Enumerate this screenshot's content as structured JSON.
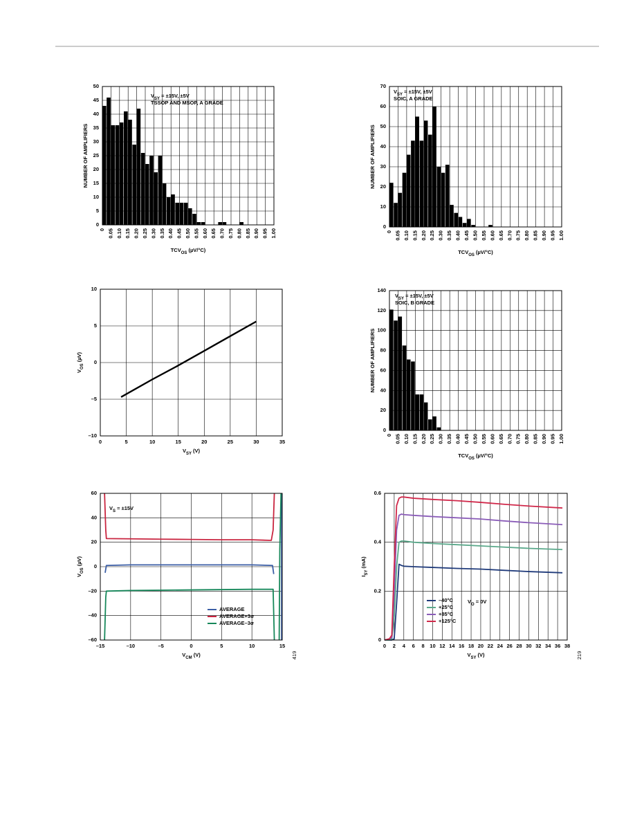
{
  "chart_data": [
    {
      "type": "histogram",
      "ylabel": "NUMBER OF AMPLIFIERS",
      "xlabel": [
        "TCV",
        "OS",
        " (µV/°C)"
      ],
      "annotations": [
        [
          "V",
          "SY",
          " = ±15V, ±5V"
        ],
        [
          "TSSOP AND MSOP, A GRADE"
        ]
      ],
      "bins": [
        0,
        0.025,
        0.05,
        0.075,
        0.1,
        0.125,
        0.15,
        0.175,
        0.2,
        0.225,
        0.25,
        0.275,
        0.3,
        0.325,
        0.35,
        0.375,
        0.4,
        0.425,
        0.45,
        0.475,
        0.5,
        0.525,
        0.55,
        0.575,
        0.6,
        0.625,
        0.65,
        0.675,
        0.7,
        0.725,
        0.75,
        0.775,
        0.8,
        0.825
      ],
      "values": [
        43,
        46,
        36,
        36,
        37,
        41,
        38,
        29,
        42,
        26,
        22,
        25,
        19,
        25,
        15,
        10,
        11,
        8,
        8,
        8,
        6,
        4,
        1,
        1,
        0,
        0,
        0,
        1,
        1,
        0,
        0,
        0,
        1
      ],
      "color": "#000000",
      "grid": true,
      "xlim": [
        0,
        1
      ],
      "xticks": [
        0,
        0.05,
        {
          "value": 0.1,
          "label": "0.10"
        },
        0.15,
        {
          "value": 0.2,
          "label": "0.20"
        },
        0.25,
        {
          "value": 0.3,
          "label": "0.30"
        },
        0.35,
        {
          "value": 0.4,
          "label": "0.40"
        },
        0.45,
        {
          "value": 0.5,
          "label": "0.50"
        },
        0.55,
        {
          "value": 0.6,
          "label": "0.60"
        },
        0.65,
        {
          "value": 0.7,
          "label": "0.70"
        },
        0.75,
        {
          "value": 0.8,
          "label": "0.80"
        },
        0.85,
        {
          "value": 0.9,
          "label": "0.90"
        },
        0.95,
        {
          "value": 1,
          "label": "1.00"
        }
      ],
      "ylim": [
        0,
        50
      ],
      "yticks": [
        0,
        5,
        10,
        15,
        20,
        25,
        30,
        35,
        40,
        45,
        50
      ]
    },
    {
      "type": "histogram",
      "ylabel": "NUMBER OF AMPLIFIERS",
      "xlabel": [
        "TCV",
        "OS",
        " (µV/°C)"
      ],
      "annotations": [
        [
          "V",
          "SY",
          " = ±15V, ±5V"
        ],
        [
          "SOIC, A GRADE"
        ]
      ],
      "bins": [
        0,
        0.025,
        0.05,
        0.075,
        0.1,
        0.125,
        0.15,
        0.175,
        0.2,
        0.225,
        0.25,
        0.275,
        0.3,
        0.325,
        0.35,
        0.375,
        0.4,
        0.425,
        0.45,
        0.475,
        0.5,
        0.525,
        0.55,
        0.575,
        0.6
      ],
      "values": [
        22,
        12,
        17,
        27,
        36,
        43,
        55,
        43,
        53,
        46,
        60,
        30,
        27,
        31,
        11,
        7,
        5,
        2,
        4,
        1,
        0,
        0,
        0,
        1
      ],
      "color": "#000000",
      "grid": true,
      "xlim": [
        0,
        1
      ],
      "xticks": [
        0,
        0.05,
        {
          "value": 0.1,
          "label": "0.10"
        },
        0.15,
        {
          "value": 0.2,
          "label": "0.20"
        },
        0.25,
        {
          "value": 0.3,
          "label": "0.30"
        },
        0.35,
        {
          "value": 0.4,
          "label": "0.40"
        },
        0.45,
        {
          "value": 0.5,
          "label": "0.50"
        },
        0.55,
        {
          "value": 0.6,
          "label": "0.60"
        },
        0.65,
        {
          "value": 0.7,
          "label": "0.70"
        },
        0.75,
        {
          "value": 0.8,
          "label": "0.80"
        },
        0.85,
        {
          "value": 0.9,
          "label": "0.90"
        },
        0.95,
        {
          "value": 1,
          "label": "1.00"
        }
      ],
      "ylim": [
        0,
        70
      ],
      "yticks": [
        0,
        10,
        20,
        30,
        40,
        50,
        60,
        70
      ]
    },
    {
      "type": "line",
      "xlabel": [
        "V",
        "SY",
        " (V)"
      ],
      "ylabel": [
        "V",
        "OS",
        " (µV)"
      ],
      "grid": true,
      "series": [
        {
          "color": "#000000",
          "x": [
            4,
            10,
            15,
            20,
            25,
            30
          ],
          "values": [
            -4.7,
            -2.3,
            -0.4,
            1.6,
            3.6,
            5.6
          ]
        }
      ],
      "xlim": [
        0,
        35
      ],
      "xticks": [
        0,
        5,
        10,
        15,
        20,
        25,
        30,
        35
      ],
      "ylim": [
        -10,
        10
      ],
      "yticks": [
        {
          "value": -10,
          "label": "–10"
        },
        {
          "value": -5,
          "label": "–5"
        },
        0,
        5,
        10
      ]
    },
    {
      "type": "histogram",
      "ylabel": "NUMBER OF AMPLIFIERS",
      "xlabel": [
        "TCV",
        "OS",
        " (µV/°C)"
      ],
      "annotations": [
        [
          "V",
          "SY",
          " = ±15V, ±5V"
        ],
        [
          "SOIC, B GRADE"
        ]
      ],
      "bins": [
        0,
        0.025,
        0.05,
        0.075,
        0.1,
        0.125,
        0.15,
        0.175,
        0.2,
        0.225,
        0.25,
        0.275,
        0.3
      ],
      "values": [
        121,
        110,
        114,
        85,
        71,
        69,
        36,
        36,
        28,
        11,
        14,
        3
      ],
      "color": "#000000",
      "grid": true,
      "xlim": [
        0,
        1
      ],
      "xticks": [
        0,
        0.05,
        {
          "value": 0.1,
          "label": "0.10"
        },
        0.15,
        {
          "value": 0.2,
          "label": "0.20"
        },
        0.25,
        {
          "value": 0.3,
          "label": "0.30"
        },
        0.35,
        {
          "value": 0.4,
          "label": "0.40"
        },
        0.45,
        {
          "value": 0.5,
          "label": "0.50"
        },
        0.55,
        {
          "value": 0.6,
          "label": "0.60"
        },
        0.65,
        {
          "value": 0.7,
          "label": "0.70"
        },
        0.75,
        {
          "value": 0.8,
          "label": "0.80"
        },
        0.85,
        {
          "value": 0.9,
          "label": "0.90"
        },
        0.95,
        {
          "value": 1,
          "label": "1.00"
        }
      ],
      "ylim": [
        0,
        140
      ],
      "yticks": [
        0,
        20,
        40,
        60,
        80,
        100,
        120,
        140
      ]
    },
    {
      "type": "line",
      "xlabel": [
        "V",
        "CM",
        " (V)"
      ],
      "ylabel": [
        "V",
        "OS",
        " (µV)"
      ],
      "grid": true,
      "annotations": [
        [
          "V",
          "S",
          " = ±15V"
        ]
      ],
      "legend": "lower right",
      "figure_id": "419",
      "series": [
        {
          "name": "AVERAGE",
          "color": "#3b5ea6",
          "x": [
            -14.2,
            -14,
            -10,
            0,
            10,
            13.4,
            13.6,
            null,
            14.9,
            14.9
          ],
          "values": [
            -5,
            1,
            1.5,
            1.5,
            1.5,
            1,
            -6,
            null,
            -60,
            60
          ]
        },
        {
          "name": "AVERAGE+3σ",
          "color": "#c9243f",
          "x": [
            -14.3,
            -14.1,
            -14,
            -10,
            -5,
            0,
            5,
            10,
            13.2,
            13.5,
            13.7
          ],
          "values": [
            60,
            30,
            23,
            22.8,
            22.5,
            22.3,
            22,
            22,
            21.5,
            30,
            60
          ]
        },
        {
          "name": "AVERAGE–3σ",
          "color": "#16875a",
          "x": [
            -14.3,
            -14.1,
            -14,
            -10,
            0,
            10,
            13.5,
            13.7,
            null,
            14.5,
            14.6,
            14.8
          ],
          "values": [
            -60,
            -25,
            -20,
            -19.5,
            -19,
            -18.5,
            -18.5,
            -60,
            null,
            -60,
            14,
            60
          ]
        }
      ],
      "xlim": [
        -15,
        15
      ],
      "xticks": [
        {
          "value": -15,
          "label": "–15"
        },
        {
          "value": -10,
          "label": "–10"
        },
        {
          "value": -5,
          "label": "–5"
        },
        0,
        5,
        10,
        15
      ],
      "ylim": [
        -60,
        60
      ],
      "yticks": [
        {
          "value": -60,
          "label": "–60"
        },
        {
          "value": -40,
          "label": "–40"
        },
        {
          "value": -20,
          "label": "–20"
        },
        0,
        20,
        40,
        60
      ]
    },
    {
      "type": "line",
      "xlabel": [
        "V",
        "SY",
        " (V)"
      ],
      "ylabel": [
        "I",
        "SY",
        " (mA)"
      ],
      "grid": true,
      "annotations": [
        [
          "V",
          "O",
          " = 0V"
        ]
      ],
      "legend": "lower left",
      "figure_id": "219",
      "series": [
        {
          "name": "–40°C",
          "color": "#1f3a7a",
          "x": [
            0,
            1,
            1.5,
            2,
            2.5,
            3,
            3.5,
            4,
            6,
            10,
            15,
            20,
            25,
            30,
            37
          ],
          "values": [
            0,
            0,
            0,
            0.005,
            0.15,
            0.31,
            0.305,
            0.302,
            0.3,
            0.297,
            0.293,
            0.29,
            0.285,
            0.28,
            0.275
          ]
        },
        {
          "name": "+25°C",
          "color": "#5aa88a",
          "x": [
            0,
            1,
            1.5,
            2,
            2.5,
            3,
            3.5,
            4,
            6,
            10,
            15,
            20,
            25,
            30,
            37
          ],
          "values": [
            0,
            0,
            0.005,
            0.1,
            0.3,
            0.4,
            0.405,
            0.405,
            0.4,
            0.395,
            0.39,
            0.385,
            0.38,
            0.375,
            0.37
          ]
        },
        {
          "name": "+85°C",
          "color": "#8a5cb8",
          "x": [
            0,
            1,
            1.5,
            2,
            2.5,
            3,
            3.5,
            4,
            6,
            10,
            15,
            20,
            25,
            30,
            37
          ],
          "values": [
            0,
            0.005,
            0.01,
            0.2,
            0.45,
            0.51,
            0.515,
            0.513,
            0.51,
            0.505,
            0.5,
            0.495,
            0.487,
            0.48,
            0.472
          ]
        },
        {
          "name": "+125°C",
          "color": "#d0284a",
          "x": [
            0,
            1,
            1.5,
            2,
            2.5,
            3,
            3.5,
            4,
            6,
            10,
            15,
            20,
            25,
            30,
            37
          ],
          "values": [
            0,
            0.005,
            0.02,
            0.3,
            0.55,
            0.58,
            0.585,
            0.585,
            0.58,
            0.575,
            0.57,
            0.563,
            0.555,
            0.548,
            0.54
          ]
        }
      ],
      "xlim": [
        0,
        38
      ],
      "xticks": [
        0,
        2,
        4,
        6,
        8,
        10,
        12,
        14,
        16,
        18,
        20,
        22,
        24,
        26,
        28,
        30,
        32,
        34,
        36,
        38
      ],
      "ylim": [
        0,
        0.6
      ],
      "yticks": [
        0,
        0.2,
        0.4,
        0.6
      ]
    }
  ]
}
